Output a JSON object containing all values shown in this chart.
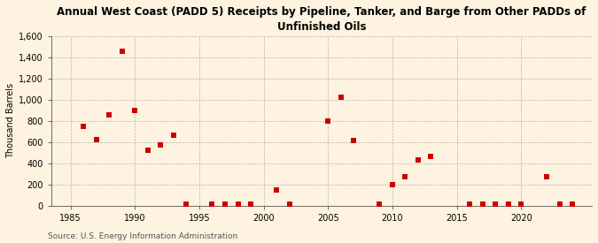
{
  "title": "Annual West Coast (PADD 5) Receipts by Pipeline, Tanker, and Barge from Other PADDs of\nUnfinished Oils",
  "ylabel": "Thousand Barrels",
  "source": "Source: U.S. Energy Information Administration",
  "background_color": "#fdf3e0",
  "plot_bg_color": "#fdf3e0",
  "marker_color": "#cc0000",
  "marker_size": 4,
  "xlim": [
    1983.5,
    2025.5
  ],
  "ylim": [
    0,
    1600
  ],
  "yticks": [
    0,
    200,
    400,
    600,
    800,
    1000,
    1200,
    1400,
    1600
  ],
  "ytick_labels": [
    "0",
    "200",
    "400",
    "600",
    "800",
    "1,000",
    "1,200",
    "1,400",
    "1,600"
  ],
  "xticks": [
    1985,
    1990,
    1995,
    2000,
    2005,
    2010,
    2015,
    2020
  ],
  "data": [
    [
      1986,
      750
    ],
    [
      1987,
      620
    ],
    [
      1988,
      855
    ],
    [
      1989,
      1455
    ],
    [
      1990,
      900
    ],
    [
      1991,
      520
    ],
    [
      1992,
      575
    ],
    [
      1993,
      665
    ],
    [
      1994,
      15
    ],
    [
      1996,
      15
    ],
    [
      1997,
      15
    ],
    [
      1998,
      15
    ],
    [
      1999,
      15
    ],
    [
      2001,
      150
    ],
    [
      2002,
      15
    ],
    [
      2005,
      800
    ],
    [
      2006,
      1020
    ],
    [
      2007,
      610
    ],
    [
      2009,
      15
    ],
    [
      2010,
      200
    ],
    [
      2011,
      270
    ],
    [
      2012,
      430
    ],
    [
      2013,
      460
    ],
    [
      2016,
      15
    ],
    [
      2017,
      15
    ],
    [
      2018,
      15
    ],
    [
      2019,
      15
    ],
    [
      2020,
      15
    ],
    [
      2022,
      270
    ],
    [
      2023,
      15
    ],
    [
      2024,
      15
    ]
  ]
}
